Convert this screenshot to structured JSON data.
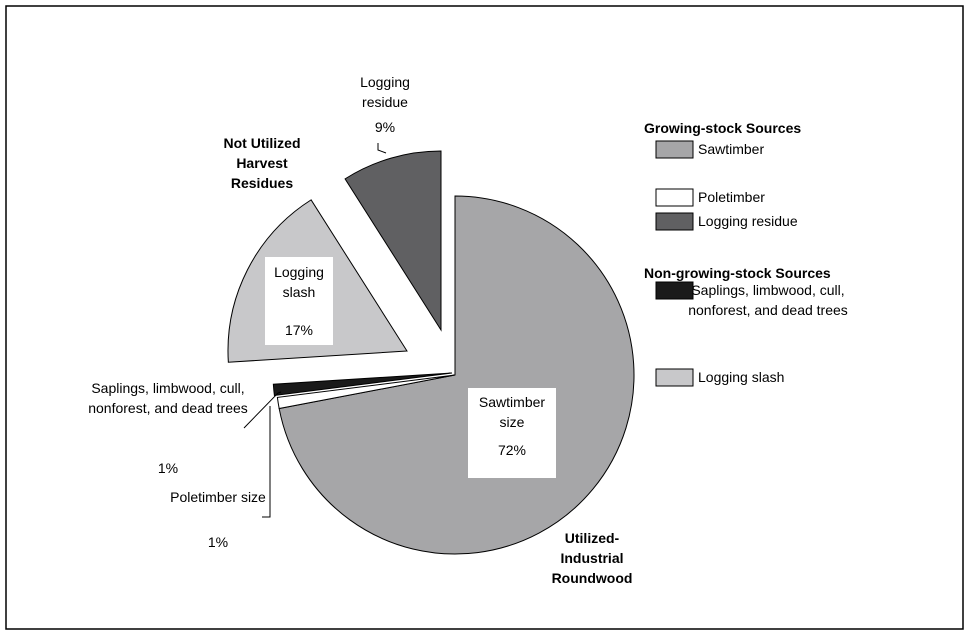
{
  "chart_data": {
    "type": "pie",
    "categories": [
      "Sawtimber",
      "Poletimber",
      "Logging residue",
      "Saplings, limbwood, cull, nonforest, and dead trees",
      "Logging slash"
    ],
    "labels": [
      "Sawtimber size",
      "Poletimber size",
      "Logging residue",
      "Saplings, limbwood, cull, nonforest, and dead trees",
      "Logging slash"
    ],
    "values": [
      72,
      1,
      9,
      1,
      17
    ],
    "value_labels": [
      "72%",
      "1%",
      "9%",
      "1%",
      "17%"
    ],
    "colors": [
      "#a6a6a8",
      "#ffffff",
      "#606062",
      "#1a1a1a",
      "#c8c8ca"
    ],
    "legend_groups": [
      {
        "title": "Growing-stock Sources",
        "categories": [
          0,
          1,
          2
        ]
      },
      {
        "title": "Non-growing-stock Sources",
        "categories": [
          3,
          4
        ]
      }
    ],
    "annotations": [
      "Not Utilized Harvest Residues",
      "Utilized-Industrial Roundwood"
    ]
  }
}
